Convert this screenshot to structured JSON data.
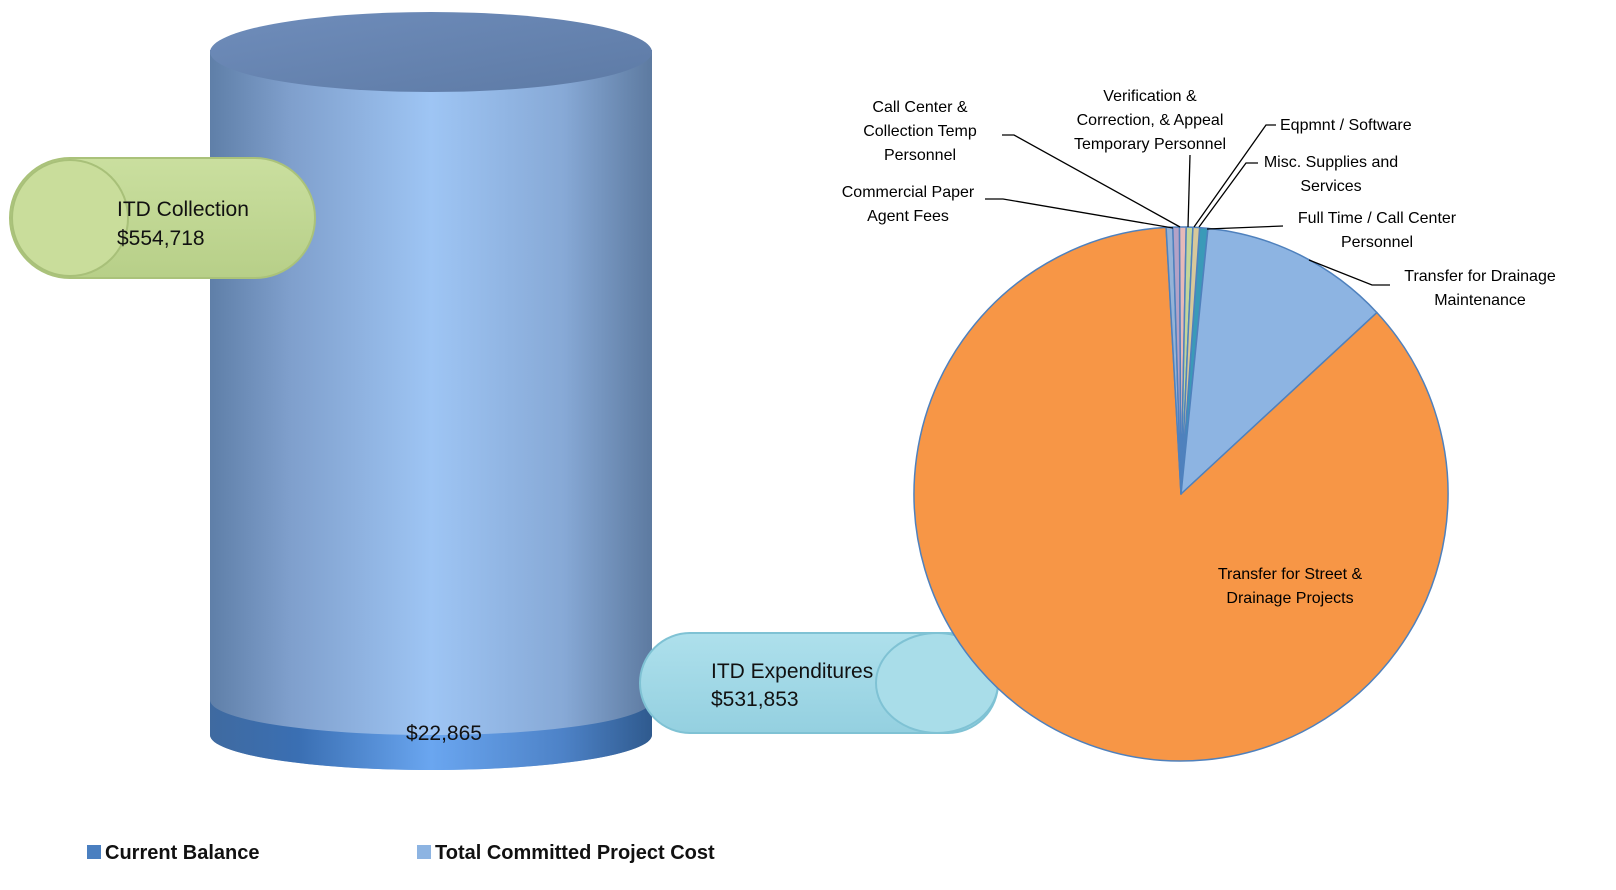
{
  "chart_data": [
    {
      "type": "bar",
      "style": "3d-cylinder-stacked",
      "categories": [
        ""
      ],
      "series": [
        {
          "name": "Current Balance",
          "values": [
            22865
          ],
          "color": "#4a7fc0",
          "value_label": "$22,865"
        },
        {
          "name": "Total Committed Project Cost",
          "values": [
            531853
          ],
          "color": "#8db4e2"
        }
      ],
      "legend": {
        "position": "bottom-left",
        "entries": [
          "Current Balance",
          "Total Committed Project Cost"
        ]
      },
      "ylim": [
        0,
        554718
      ],
      "grid": false,
      "callouts": [
        {
          "id": "collection",
          "line1": "ITD Collection",
          "line2": "$554,718",
          "color": "#c4d79b"
        },
        {
          "id": "expenditures",
          "line1": "ITD Expenditures",
          "line2": "$531,853",
          "color": "#a6dbe8"
        }
      ]
    },
    {
      "type": "pie",
      "legend": "none",
      "slices": [
        {
          "label": "Full Time / Call Center Personnel",
          "value": 0.5,
          "color": "#3a9ab8"
        },
        {
          "label": "Transfer for Drainage Maintenance",
          "value": 11.5,
          "color": "#8db4e2"
        },
        {
          "label": "Transfer for Street & Drainage Projects",
          "value": 86.0,
          "color": "#f79646"
        },
        {
          "label": "Commercial Paper Agent Fees",
          "value": 0.4,
          "color": "#95b3d7"
        },
        {
          "label": "Call Center & Collection Temp Personnel",
          "value": 0.4,
          "color": "#b3a2c7"
        },
        {
          "label": "Verification & Correction, & Appeal Temporary Personnel",
          "value": 0.4,
          "color": "#e6b9b8"
        },
        {
          "label": "Eqpmnt / Software",
          "value": 0.4,
          "color": "#c3d69b"
        },
        {
          "label": "Misc. Supplies and Services",
          "value": 0.4,
          "color": "#d7c89b"
        }
      ]
    }
  ]
}
